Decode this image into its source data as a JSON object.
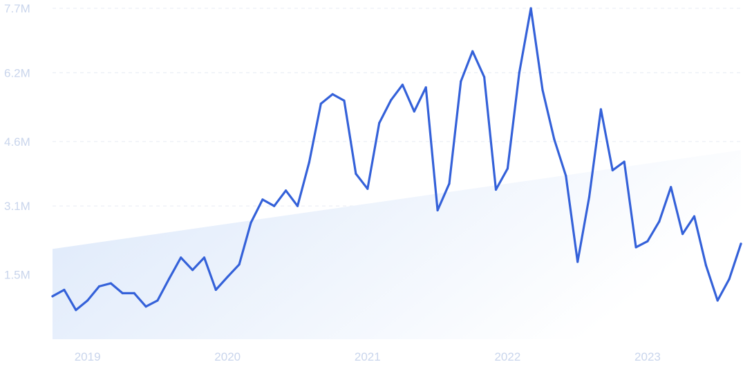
{
  "chart_data": {
    "type": "line",
    "title": "",
    "xlabel": "",
    "ylabel": "",
    "ylim": [
      0,
      7700000
    ],
    "grid": true,
    "y_ticks": [
      {
        "value": 1500000,
        "label": "1.5M"
      },
      {
        "value": 3100000,
        "label": "3.1M"
      },
      {
        "value": 4600000,
        "label": "4.6M"
      },
      {
        "value": 6200000,
        "label": "6.2M"
      },
      {
        "value": 7700000,
        "label": "7.7M"
      }
    ],
    "x_ticks": [
      {
        "value": "2019-01",
        "label": "2019"
      },
      {
        "value": "2020-01",
        "label": "2020"
      },
      {
        "value": "2021-01",
        "label": "2021"
      },
      {
        "value": "2022-01",
        "label": "2022"
      },
      {
        "value": "2023-01",
        "label": "2023"
      }
    ],
    "colors": {
      "line": "#3461d9",
      "trend_fill_start": "#dce8fa",
      "trend_fill_end": "#ffffff"
    },
    "trend": {
      "start": {
        "x": "2018-10",
        "y": 2100000
      },
      "end": {
        "x": "2023-09",
        "y": 4400000
      }
    },
    "series": [
      {
        "x": [
          "2018-10",
          "2018-11",
          "2018-12",
          "2019-01",
          "2019-02",
          "2019-03",
          "2019-04",
          "2019-05",
          "2019-06",
          "2019-07",
          "2019-08",
          "2019-09",
          "2019-10",
          "2019-11",
          "2019-12",
          "2020-01",
          "2020-02",
          "2020-03",
          "2020-04",
          "2020-05",
          "2020-06",
          "2020-07",
          "2020-08",
          "2020-09",
          "2020-10",
          "2020-11",
          "2020-12",
          "2021-01",
          "2021-02",
          "2021-03",
          "2021-04",
          "2021-05",
          "2021-06",
          "2021-07",
          "2021-08",
          "2021-09",
          "2021-10",
          "2021-11",
          "2021-12",
          "2022-01",
          "2022-02",
          "2022-03",
          "2022-04",
          "2022-05",
          "2022-06",
          "2022-07",
          "2022-08",
          "2022-09",
          "2022-10",
          "2022-11",
          "2022-12",
          "2023-01",
          "2023-02",
          "2023-03",
          "2023-04",
          "2023-05",
          "2023-06",
          "2023-07",
          "2023-08",
          "2023-09"
        ],
        "values": [
          1000000,
          1150000,
          680000,
          900000,
          1230000,
          1300000,
          1070000,
          1070000,
          760000,
          900000,
          1410000,
          1900000,
          1610000,
          1900000,
          1150000,
          1450000,
          1740000,
          2710000,
          3250000,
          3100000,
          3460000,
          3100000,
          4120000,
          5480000,
          5700000,
          5550000,
          3850000,
          3500000,
          5030000,
          5560000,
          5920000,
          5300000,
          5860000,
          3000000,
          3620000,
          6000000,
          6700000,
          6100000,
          3480000,
          3970000,
          6200000,
          7700000,
          5800000,
          4650000,
          3800000,
          1800000,
          3310000,
          5350000,
          3930000,
          4130000,
          2140000,
          2280000,
          2740000,
          3540000,
          2450000,
          2860000,
          1720000,
          900000,
          1400000,
          2220000
        ]
      }
    ]
  }
}
